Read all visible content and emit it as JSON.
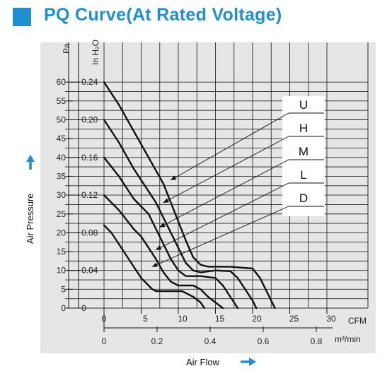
{
  "title": "PQ Curve(At Rated Voltage)",
  "colors": {
    "accent": "#1e8fd0",
    "panel": "#e6e6e6",
    "grid": "#2a2a2a",
    "curve": "#111111"
  },
  "chart_data": {
    "type": "line",
    "title": "PQ Curve(At Rated Voltage)",
    "xlabel": "Air Flow",
    "ylabel": "Air Pressure",
    "grid": true,
    "legend_position": "right",
    "x_axes": [
      {
        "unit": "CFM",
        "range": [
          0,
          30
        ],
        "ticks": [
          "0",
          "5",
          "10",
          "15",
          "20",
          "25",
          "30"
        ]
      },
      {
        "unit": "m³/min",
        "range": [
          0,
          0.85
        ],
        "ticks": [
          "0",
          "0.2",
          "0.4",
          "0.6",
          "0.8"
        ]
      }
    ],
    "y_axes": [
      {
        "unit": "Pa",
        "range": [
          0,
          60
        ],
        "ticks": [
          "0",
          "5",
          "10",
          "15",
          "20",
          "25",
          "30",
          "35",
          "40",
          "45",
          "50",
          "55",
          "60"
        ]
      },
      {
        "unit": "In H₂O",
        "range": [
          0,
          0.24
        ],
        "ticks": [
          "0",
          "0.04",
          "0.08",
          "0.12",
          "0.16",
          "0.20",
          "0.24"
        ]
      }
    ],
    "series": [
      {
        "name": "U",
        "points": [
          [
            0,
            60
          ],
          [
            2,
            54
          ],
          [
            4,
            47
          ],
          [
            6,
            40
          ],
          [
            8,
            33
          ],
          [
            9,
            28
          ],
          [
            10,
            23
          ],
          [
            11,
            18
          ],
          [
            12,
            13.5
          ],
          [
            13,
            11.5
          ],
          [
            14,
            11
          ],
          [
            17,
            11
          ],
          [
            20,
            10.5
          ],
          [
            21,
            8
          ],
          [
            22,
            4
          ],
          [
            22.5,
            2
          ],
          [
            23,
            0
          ]
        ]
      },
      {
        "name": "H",
        "points": [
          [
            0,
            50
          ],
          [
            2,
            44
          ],
          [
            4,
            37
          ],
          [
            6,
            31
          ],
          [
            7,
            28
          ],
          [
            8,
            24
          ],
          [
            9,
            20
          ],
          [
            10,
            16
          ],
          [
            11,
            12
          ],
          [
            12,
            10
          ],
          [
            13,
            9.5
          ],
          [
            15,
            10
          ],
          [
            17,
            9.8
          ],
          [
            18,
            8
          ],
          [
            19,
            5
          ],
          [
            20,
            2
          ],
          [
            20.5,
            0
          ]
        ]
      },
      {
        "name": "M",
        "points": [
          [
            0,
            40
          ],
          [
            2,
            35
          ],
          [
            4,
            29
          ],
          [
            5,
            27
          ],
          [
            6,
            25
          ],
          [
            7,
            21
          ],
          [
            8,
            17
          ],
          [
            9,
            13
          ],
          [
            10,
            10
          ],
          [
            11,
            8.5
          ],
          [
            13,
            8.5
          ],
          [
            15,
            8
          ],
          [
            16,
            6
          ],
          [
            17,
            3
          ],
          [
            18,
            0
          ]
        ]
      },
      {
        "name": "L",
        "points": [
          [
            0,
            30
          ],
          [
            2,
            26
          ],
          [
            4,
            21
          ],
          [
            5,
            19
          ],
          [
            6,
            16
          ],
          [
            7,
            13
          ],
          [
            8,
            9.5
          ],
          [
            9,
            7
          ],
          [
            10,
            6
          ],
          [
            12,
            6
          ],
          [
            13,
            5
          ],
          [
            14,
            3
          ],
          [
            15,
            1.5
          ],
          [
            16,
            0
          ]
        ]
      },
      {
        "name": "D",
        "points": [
          [
            0,
            22
          ],
          [
            1,
            20
          ],
          [
            2,
            17
          ],
          [
            3,
            14
          ],
          [
            4,
            11
          ],
          [
            5,
            8
          ],
          [
            6,
            6
          ],
          [
            6.5,
            5
          ],
          [
            7,
            4.5
          ],
          [
            9,
            4.5
          ],
          [
            10.5,
            4.5
          ],
          [
            12,
            3
          ],
          [
            13,
            1.5
          ],
          [
            13.5,
            0
          ]
        ]
      }
    ],
    "annotations": [
      {
        "label": "U",
        "points_to": [
          9,
          34
        ]
      },
      {
        "label": "H",
        "points_to": [
          8,
          28
        ]
      },
      {
        "label": "M",
        "points_to": [
          7.5,
          21.5
        ]
      },
      {
        "label": "L",
        "points_to": [
          7,
          15.5
        ]
      },
      {
        "label": "D",
        "points_to": [
          6.5,
          11
        ]
      }
    ]
  }
}
